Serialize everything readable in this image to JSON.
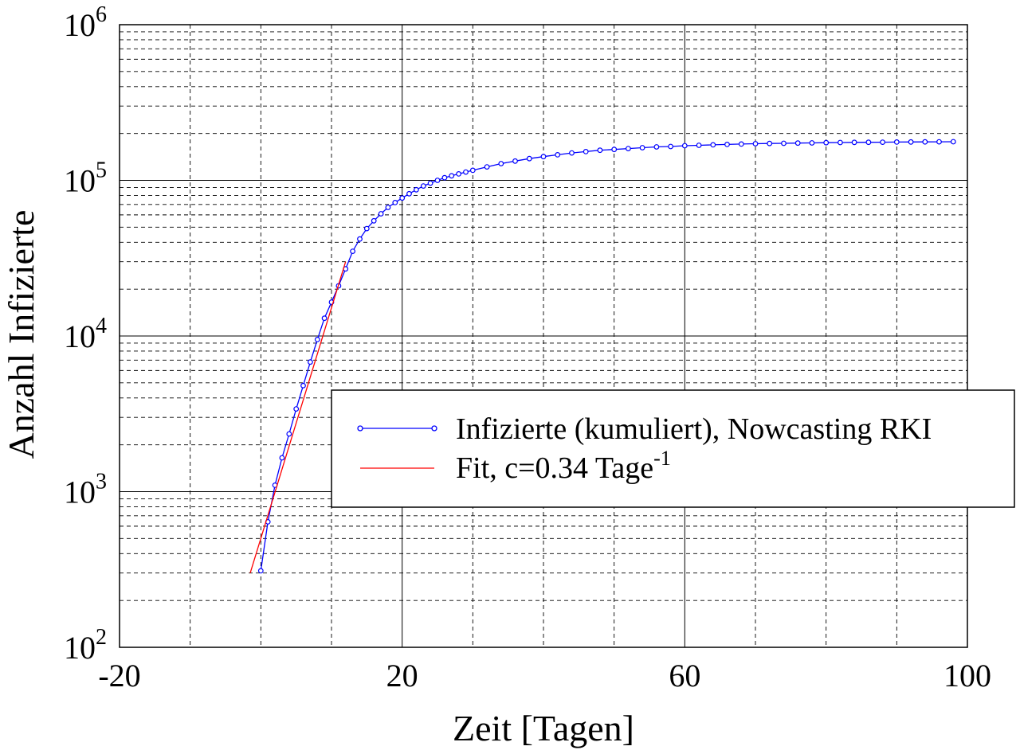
{
  "chart_data": {
    "type": "line",
    "xlabel": "Zeit [Tagen]",
    "ylabel": "Anzahl Infizierte",
    "xlim": [
      -20,
      100
    ],
    "ylim": [
      100,
      1000000
    ],
    "yscale": "log",
    "grid": true,
    "x_tick_labels": [
      "-20",
      "20",
      "60",
      "100"
    ],
    "y_tick_labels": [
      {
        "base": "10",
        "exp": "2"
      },
      {
        "base": "10",
        "exp": "3"
      },
      {
        "base": "10",
        "exp": "4"
      },
      {
        "base": "10",
        "exp": "5"
      },
      {
        "base": "10",
        "exp": "6"
      }
    ],
    "legend_position": "center-right",
    "series": [
      {
        "name": "Infizierte (kumuliert), Nowcasting RKI",
        "style": "line-with-circle-markers",
        "color": "#0000ff",
        "x": [
          0,
          1,
          2,
          3,
          4,
          5,
          6,
          7,
          8,
          9,
          10,
          11,
          12,
          13,
          14,
          15,
          16,
          17,
          18,
          19,
          20,
          21,
          22,
          23,
          24,
          25,
          26,
          27,
          28,
          29,
          30,
          32,
          34,
          36,
          38,
          40,
          42,
          44,
          46,
          48,
          50,
          52,
          54,
          56,
          58,
          60,
          62,
          64,
          66,
          68,
          70,
          72,
          74,
          76,
          78,
          80,
          82,
          84,
          86,
          88,
          90,
          92,
          94,
          96,
          98
        ],
        "y": [
          310,
          640,
          1100,
          1650,
          2350,
          3400,
          4800,
          6800,
          9500,
          13000,
          16500,
          21000,
          27000,
          35000,
          42000,
          49000,
          55000,
          61000,
          67000,
          72000,
          77000,
          82000,
          87000,
          92000,
          96000,
          100000,
          104000,
          107000,
          110000,
          113000,
          116000,
          122000,
          128000,
          133000,
          138000,
          142000,
          146000,
          150000,
          153000,
          156000,
          158000,
          160000,
          162000,
          164000,
          165000,
          167000,
          168000,
          169000,
          170000,
          171000,
          172000,
          172500,
          173000,
          173500,
          174000,
          174500,
          175000,
          175300,
          175600,
          175900,
          176200,
          176500,
          176700,
          176900,
          177000
        ]
      },
      {
        "name": "Fit, c=0.34 Tage",
        "name_superscript": "-1",
        "style": "line",
        "color": "#ff0000",
        "x": [
          -1.5,
          12
        ],
        "y": [
          300,
          30000
        ]
      }
    ]
  }
}
